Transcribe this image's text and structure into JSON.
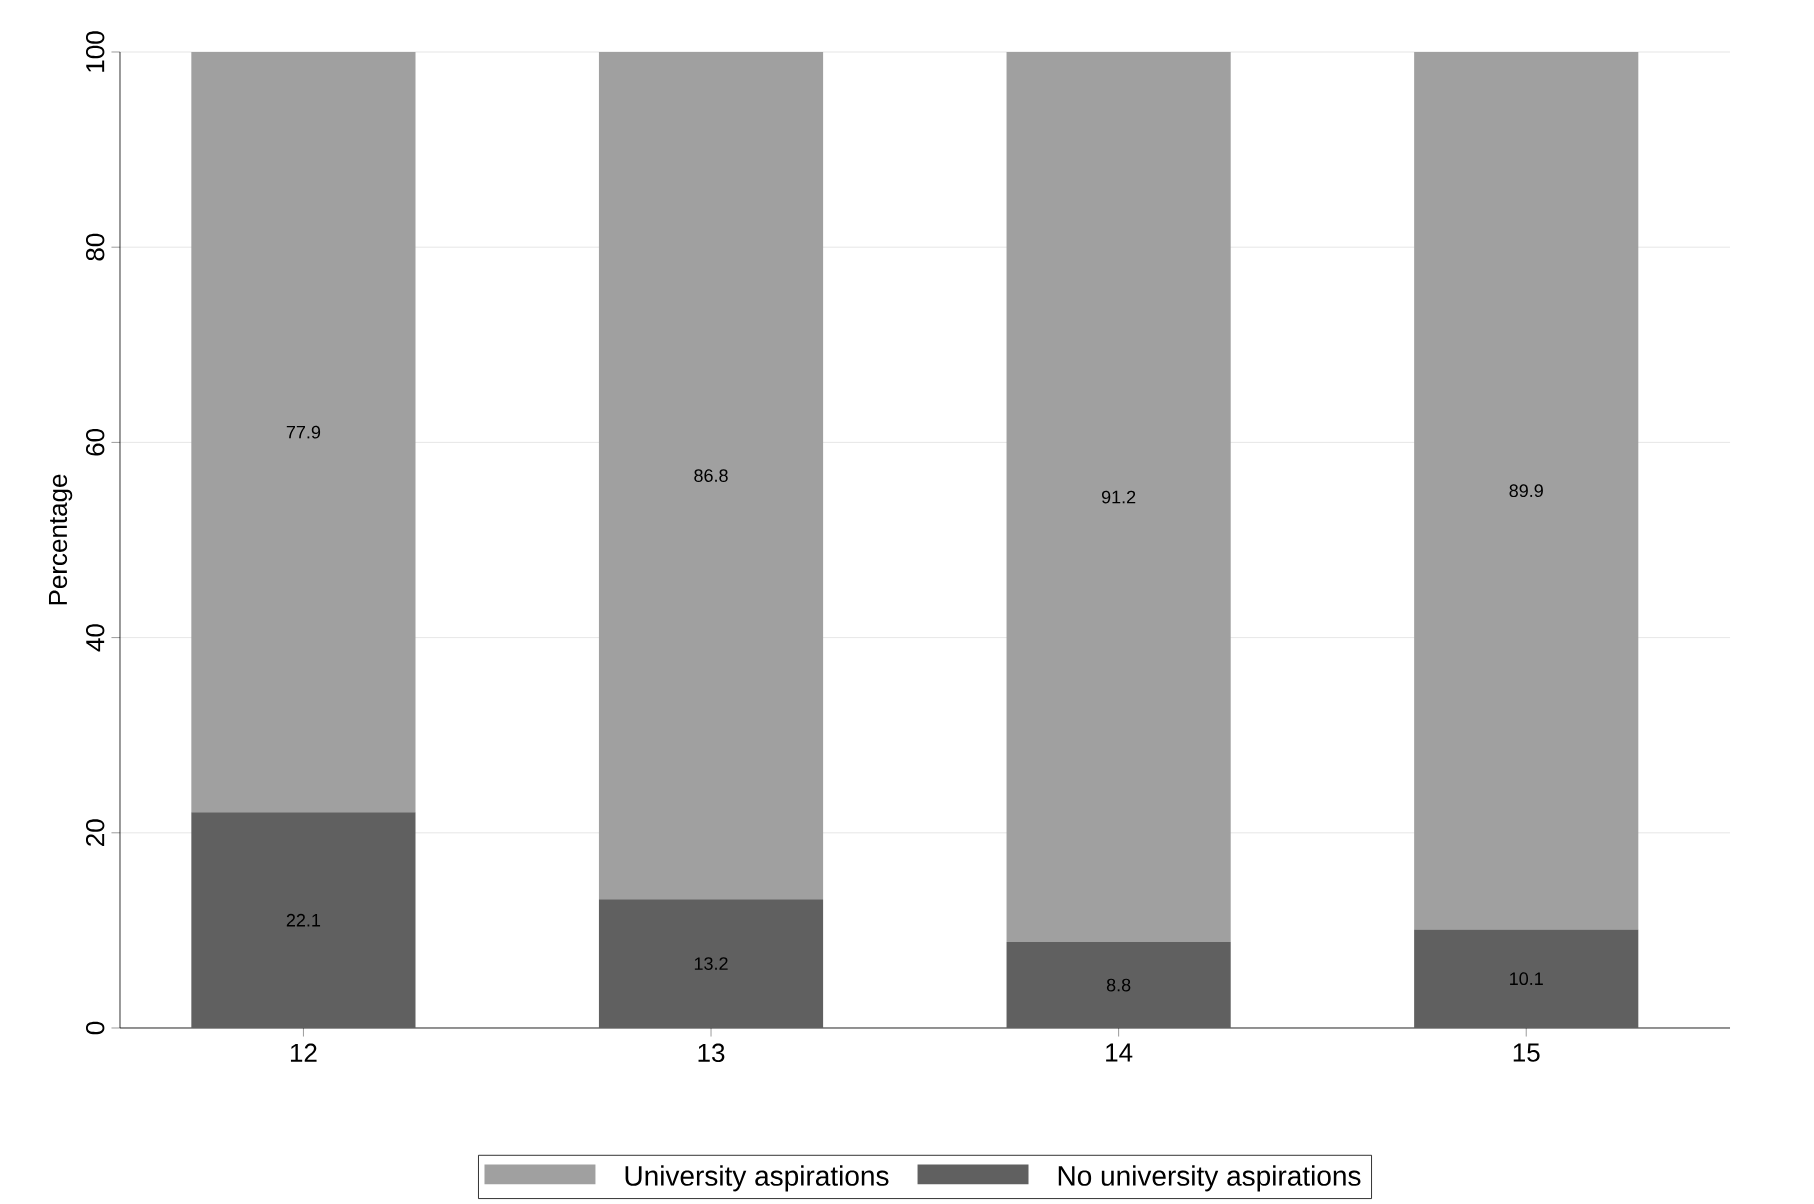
{
  "chart_data": {
    "type": "bar",
    "stacked": true,
    "ylabel": "Percentage",
    "categories": [
      "12",
      "13",
      "14",
      "15"
    ],
    "series": [
      {
        "name": "No university aspirations",
        "color": "#606060",
        "values": [
          22.1,
          13.2,
          8.8,
          10.1
        ],
        "value_labels": [
          "22.1",
          "13.2",
          "8.8",
          "10.1"
        ]
      },
      {
        "name": "University aspirations",
        "color": "#a0a0a0",
        "values": [
          77.9,
          86.8,
          91.2,
          89.9
        ],
        "value_labels": [
          "77.9",
          "86.8",
          "91.2",
          "89.9"
        ]
      }
    ],
    "ylim": [
      0,
      100
    ],
    "yticks": [
      0,
      20,
      40,
      60,
      80,
      100
    ],
    "grid": "y",
    "legend": "bottom"
  }
}
